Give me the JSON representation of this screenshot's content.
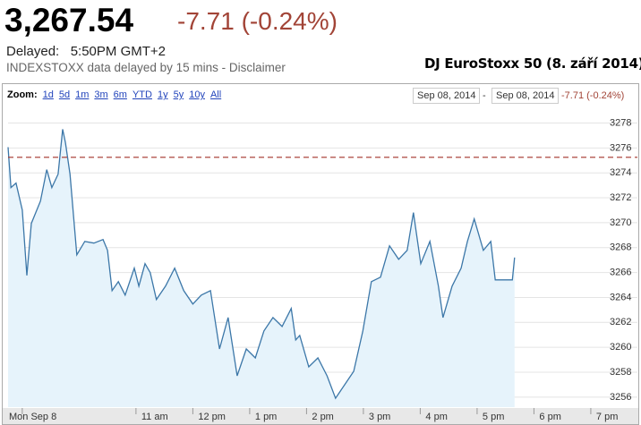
{
  "header": {
    "price": "3,267.54",
    "change": "-7.71 (-0.24%)",
    "delayed": "Delayed:   5:50PM GMT+2",
    "delay_note": "INDEXSTOXX data delayed by 15 mins - Disclaimer",
    "caption": "DJ EuroStoxx 50 (8. září 2014)"
  },
  "toolbar": {
    "zoom_label": "Zoom:",
    "zoom_options": [
      "1d",
      "5d",
      "1m",
      "3m",
      "6m",
      "YTD",
      "1y",
      "5y",
      "10y",
      "All"
    ],
    "date_from": "Sep 08, 2014",
    "separator": "-",
    "date_to": "Sep 08, 2014",
    "range_change": "-7.71 (-0.24%)"
  },
  "chart_data": {
    "type": "area",
    "x": [
      8.75,
      8.8,
      8.89,
      9.0,
      9.08,
      9.16,
      9.32,
      9.43,
      9.52,
      9.63,
      9.71,
      9.76,
      9.84,
      9.9,
      9.96,
      10.1,
      10.26,
      10.42,
      10.5,
      10.58,
      10.69,
      10.81,
      10.97,
      11.05,
      11.16,
      11.25,
      11.36,
      11.52,
      11.68,
      11.84,
      12.0,
      12.15,
      12.31,
      12.47,
      12.62,
      12.78,
      12.94,
      13.1,
      13.25,
      13.41,
      13.57,
      13.73,
      13.81,
      13.88,
      14.04,
      14.2,
      14.36,
      14.51,
      14.67,
      14.83,
      14.99,
      15.14,
      15.3,
      15.46,
      15.62,
      15.77,
      15.88,
      16.01,
      16.17,
      16.32,
      16.4,
      16.56,
      16.72,
      16.83,
      16.95,
      17.11,
      17.24,
      17.32,
      17.62,
      17.66
    ],
    "values": [
      3276.06,
      3272.82,
      3273.18,
      3271.02,
      3265.77,
      3269.94,
      3271.74,
      3274.26,
      3272.82,
      3273.9,
      3277.5,
      3276.42,
      3273.9,
      3270.66,
      3267.42,
      3268.5,
      3268.36,
      3268.65,
      3267.78,
      3264.55,
      3265.27,
      3264.19,
      3266.35,
      3264.91,
      3266.71,
      3265.99,
      3263.83,
      3264.91,
      3266.35,
      3264.55,
      3263.47,
      3264.19,
      3264.55,
      3259.87,
      3262.39,
      3257.71,
      3259.87,
      3259.15,
      3261.31,
      3262.39,
      3261.67,
      3263.11,
      3260.59,
      3260.95,
      3258.43,
      3259.15,
      3257.71,
      3255.91,
      3256.99,
      3258.07,
      3261.31,
      3265.27,
      3265.63,
      3268.14,
      3267.06,
      3267.78,
      3270.81,
      3266.71,
      3268.5,
      3264.91,
      3262.39,
      3264.91,
      3266.35,
      3268.5,
      3270.3,
      3267.78,
      3268.5,
      3265.41,
      3265.41,
      3267.21
    ],
    "color": "#3c77a8",
    "fill_color": "#e6f3fb",
    "xlim": [
      8.75,
      19.82
    ],
    "xticks": [
      {
        "value": 9,
        "label": "Mon Sep 8"
      },
      {
        "value": 11,
        "label": "11 am"
      },
      {
        "value": 12,
        "label": "12 pm"
      },
      {
        "value": 13,
        "label": "1 pm"
      },
      {
        "value": 14,
        "label": "2 pm"
      },
      {
        "value": 15,
        "label": "3 pm"
      },
      {
        "value": 16,
        "label": "4 pm"
      },
      {
        "value": 17,
        "label": "5 pm"
      },
      {
        "value": 18,
        "label": "6 pm"
      },
      {
        "value": 19,
        "label": "7 pm"
      }
    ],
    "ylim": [
      3255.2,
      3279.4
    ],
    "yticks": [
      3256,
      3258,
      3260,
      3262,
      3264,
      3266,
      3268,
      3270,
      3272,
      3274,
      3276,
      3278
    ],
    "reference_line": 3275.25,
    "reference_color": "#a3322a",
    "grid": true
  }
}
